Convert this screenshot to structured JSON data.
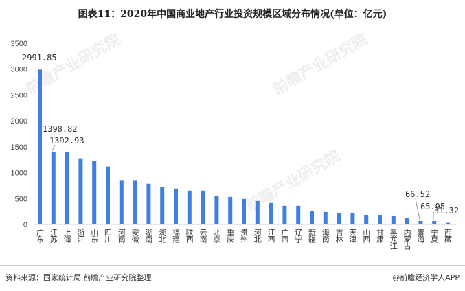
{
  "title": "图表11：2020年中国商业地产行业投资规模区域分布情况(单位：亿元)",
  "source": "资料来源：国家统计局 前瞻产业研究院整理",
  "brand": "@前瞻经济学人APP",
  "watermark": "前瞻产业研究院",
  "chart_data": {
    "type": "bar",
    "title": "图表11：2020年中国商业地产行业投资规模区域分布情况(单位：亿元)",
    "xlabel": "",
    "ylabel": "亿元",
    "ylim": [
      0,
      3500
    ],
    "yticks": [
      0,
      500,
      1000,
      1500,
      2000,
      2500,
      3000,
      3500
    ],
    "grid": false,
    "color": "#3f7fe0",
    "categories": [
      "广东",
      "江苏",
      "上海",
      "浙江",
      "山东",
      "四川",
      "河南",
      "安徽",
      "湖南",
      "湖北",
      "福建",
      "陕西",
      "云南",
      "北京",
      "重庆",
      "贵州",
      "河北",
      "江西",
      "广西",
      "辽宁",
      "新疆",
      "海南",
      "吉林",
      "天津",
      "山西",
      "甘肃",
      "黑龙江",
      "内蒙古",
      "青海",
      "宁夏",
      "西藏"
    ],
    "values": [
      2991.85,
      1398.82,
      1392.93,
      1278,
      1229,
      1118,
      856,
      856,
      786,
      719,
      692,
      652,
      652,
      546,
      532,
      493,
      453,
      413,
      360,
      360,
      253,
      240,
      226,
      226,
      186,
      186,
      173,
      120,
      66.52,
      65.95,
      31.32
    ],
    "data_labels": [
      {
        "category": "广东",
        "text": "2991.85"
      },
      {
        "category": "江苏",
        "text": "1398.82"
      },
      {
        "category": "上海",
        "text": "1392.93"
      },
      {
        "category": "青海",
        "text": "66.52"
      },
      {
        "category": "宁夏",
        "text": "65.95"
      },
      {
        "category": "西藏",
        "text": "31.32"
      }
    ]
  }
}
